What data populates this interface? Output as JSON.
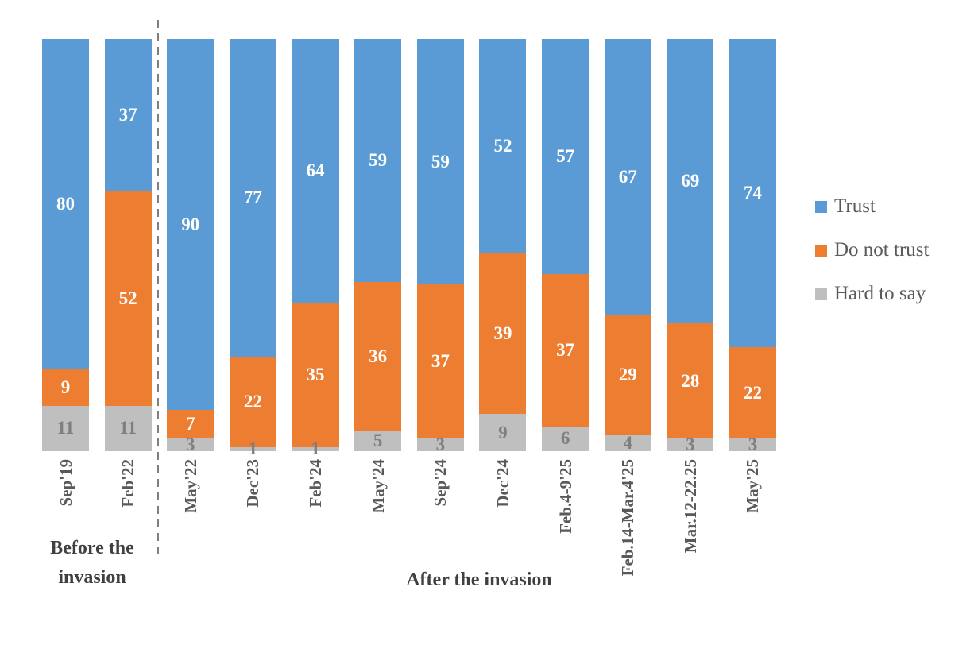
{
  "chart_data": {
    "type": "bar",
    "stacked": true,
    "orientation": "vertical",
    "title": "",
    "xlabel": "",
    "ylabel": "",
    "ylim": [
      0,
      100
    ],
    "grid": false,
    "legend_position": "right",
    "categories": [
      "Sep'19",
      "Feb'22",
      "May'22",
      "Dec'23",
      "Feb'24",
      "May'24",
      "Sep'24",
      "Dec'24",
      "Feb.4-9'25",
      "Feb.14-Mar.4'25",
      "Mar.12-22.25",
      "May'25"
    ],
    "series": [
      {
        "name": "Trust",
        "color": "#5B9BD5",
        "label_color": "#ffffff",
        "values": [
          80,
          37,
          90,
          77,
          64,
          59,
          59,
          52,
          57,
          67,
          69,
          74
        ]
      },
      {
        "name": "Do not trust",
        "color": "#ED7D31",
        "label_color": "#ffffff",
        "values": [
          9,
          52,
          7,
          22,
          35,
          36,
          37,
          39,
          37,
          29,
          28,
          22
        ]
      },
      {
        "name": "Hard to say",
        "color": "#BFBFBF",
        "label_color": "#7F7F7F",
        "values": [
          11,
          11,
          3,
          1,
          1,
          5,
          3,
          9,
          6,
          4,
          3,
          3
        ]
      }
    ],
    "groups": [
      {
        "label": "Before the invasion",
        "from_category": "Sep'19",
        "to_category": "Feb'22"
      },
      {
        "label": "After the invasion",
        "from_category": "May'22",
        "to_category": "May'25"
      }
    ],
    "divider": {
      "style": "dashed",
      "between": [
        "Feb'22",
        "May'22"
      ]
    }
  }
}
